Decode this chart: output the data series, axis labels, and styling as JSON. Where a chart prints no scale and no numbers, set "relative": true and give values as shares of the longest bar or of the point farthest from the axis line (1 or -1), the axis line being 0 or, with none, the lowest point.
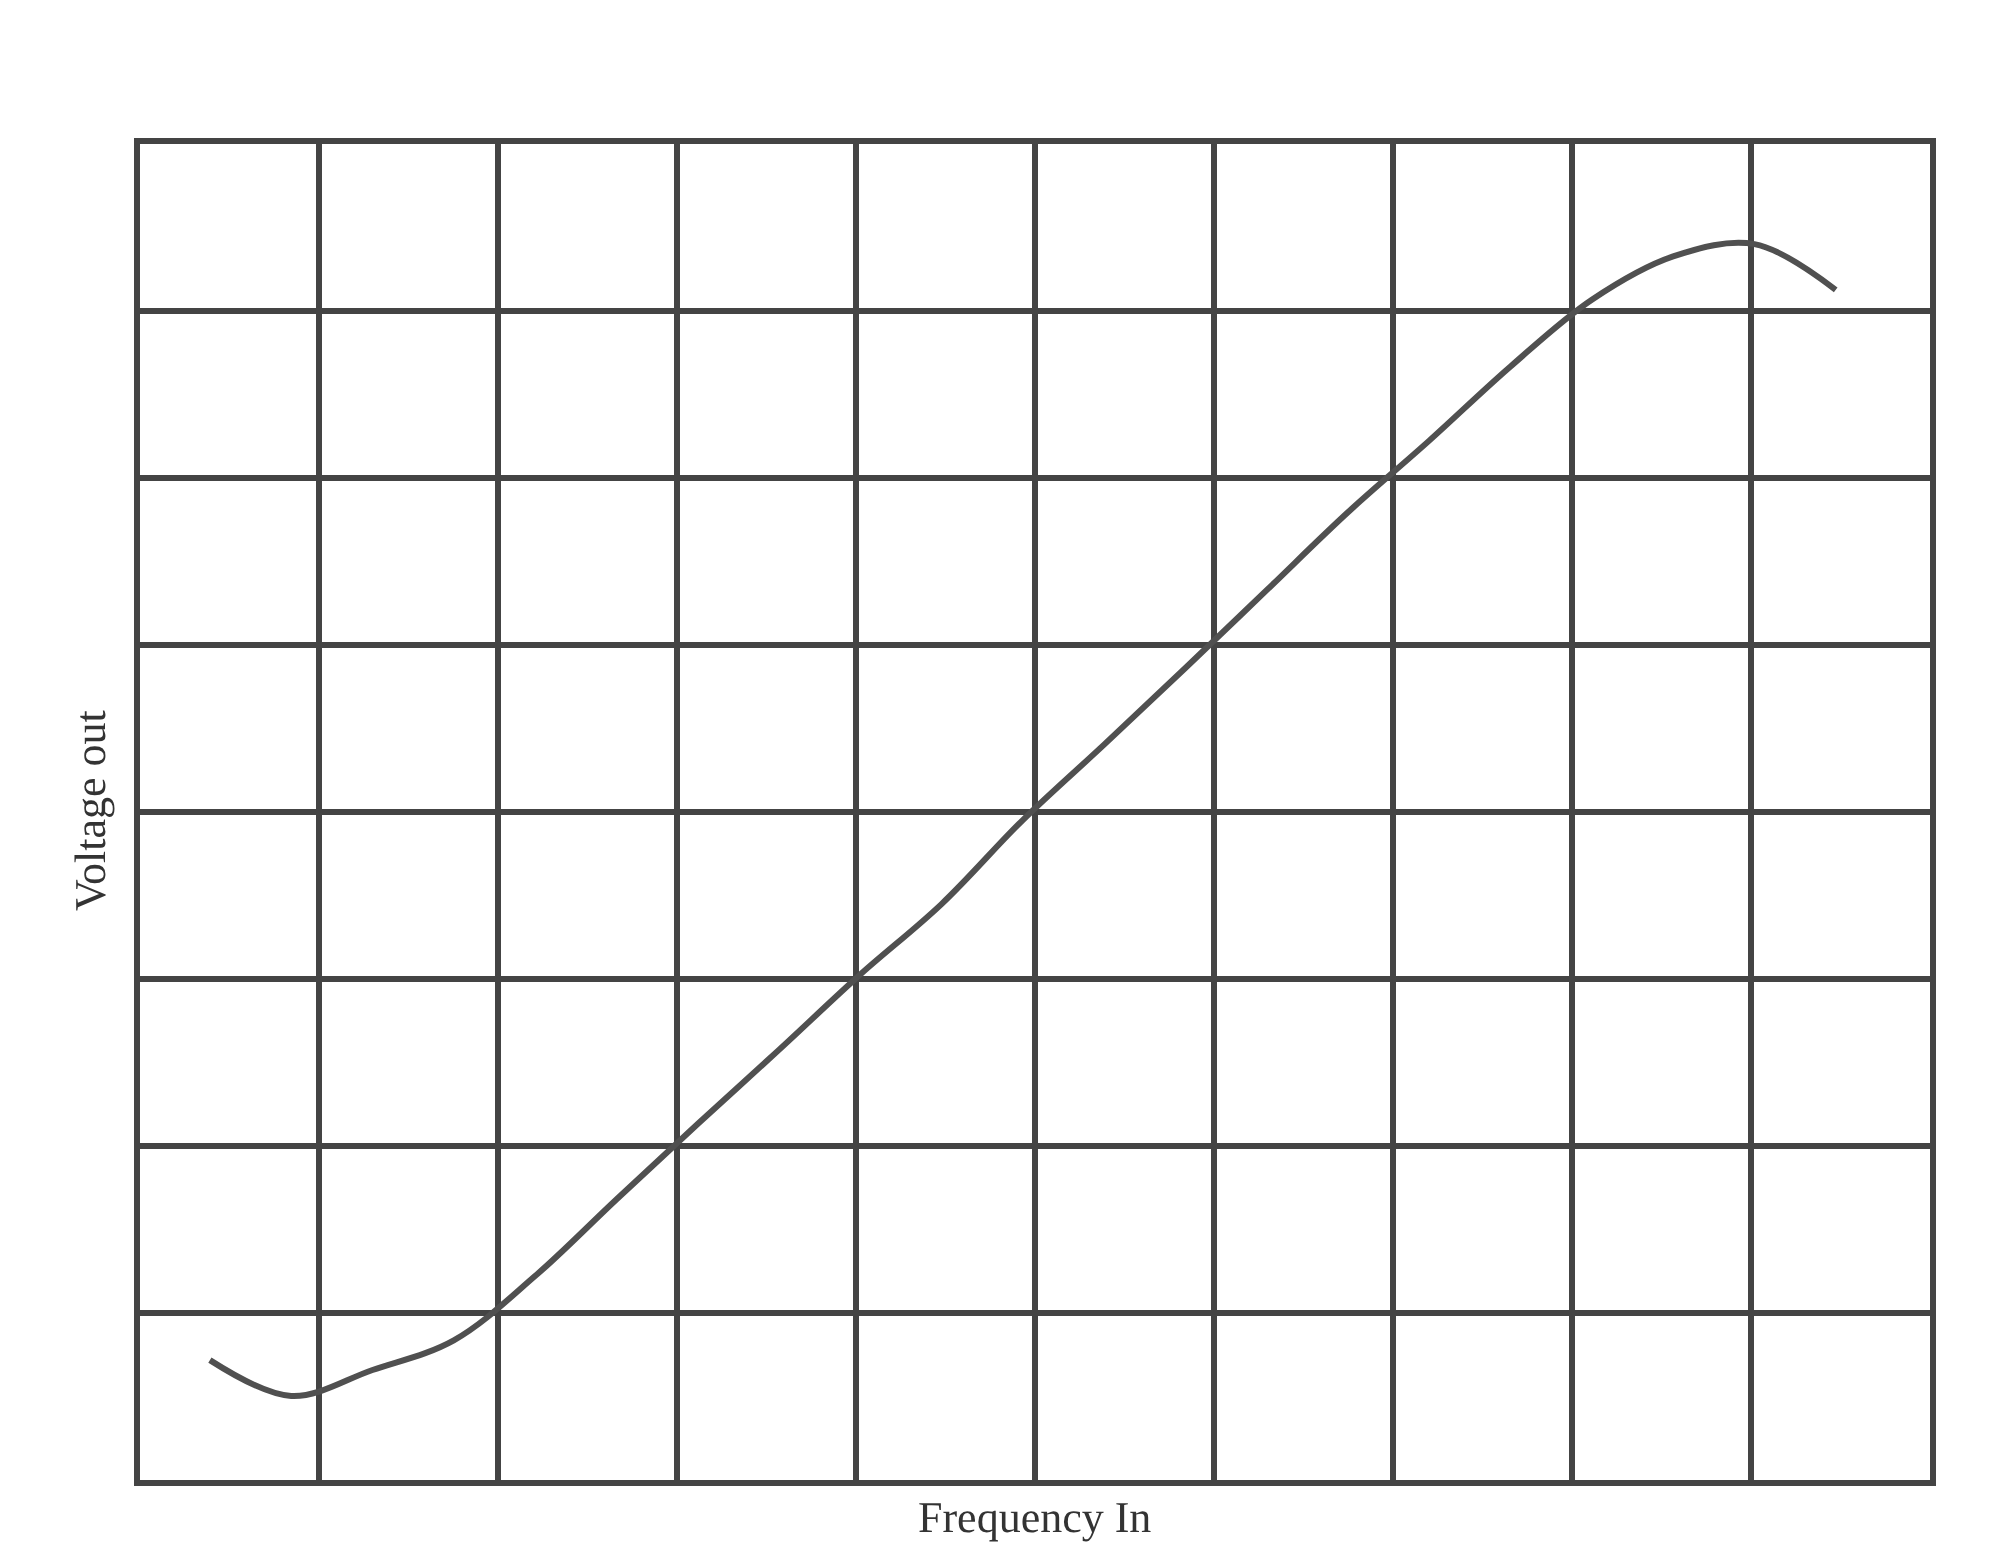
{
  "chart_data": {
    "type": "line",
    "relative": true,
    "xlabel": "Frequency In",
    "ylabel": "Voltage out",
    "grid": true,
    "legend": false,
    "marker": "none",
    "line_style": "solid",
    "categories": [
      null,
      null,
      null,
      null,
      null,
      null,
      null,
      null,
      null,
      null,
      null,
      null,
      null,
      null,
      null,
      null,
      null,
      null,
      null,
      null,
      null
    ],
    "series": [
      {
        "color": "#505050",
        "values": [
          0.097,
          0.068,
          0.089,
          0.113,
          0.165,
          0.227,
          0.288,
          0.348,
          0.409,
          0.466,
          0.534,
          0.595,
          0.657,
          0.72,
          0.783,
          0.841,
          0.901,
          0.955,
          0.99,
          1.0,
          0.963
        ]
      }
    ]
  }
}
